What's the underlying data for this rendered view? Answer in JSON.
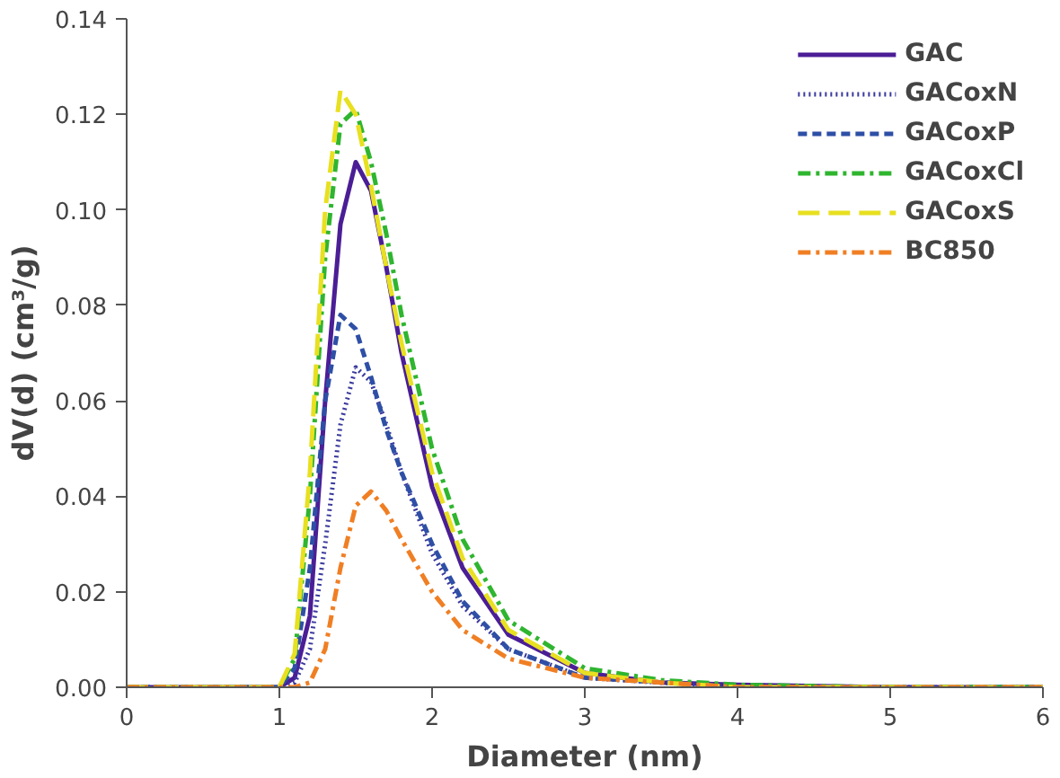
{
  "chart_data": {
    "type": "line",
    "xlabel": "Diameter (nm)",
    "ylabel": "dV(d) (cm³/g)",
    "x": [
      0,
      1.0,
      1.1,
      1.2,
      1.3,
      1.4,
      1.5,
      1.6,
      1.7,
      1.8,
      2.0,
      2.2,
      2.5,
      3.0,
      3.5,
      4,
      5,
      6
    ],
    "series": [
      {
        "name": "GAC",
        "color": "#4b1e96",
        "line_style": "solid",
        "values": [
          0,
          0,
          0.002,
          0.015,
          0.06,
          0.097,
          0.11,
          0.104,
          0.088,
          0.07,
          0.042,
          0.025,
          0.011,
          0.003,
          0.001,
          0.0005,
          0,
          0
        ]
      },
      {
        "name": "GACoxN",
        "color": "#3a3a9e",
        "line_style": "dotted",
        "values": [
          0,
          0,
          0.001,
          0.008,
          0.03,
          0.055,
          0.067,
          0.064,
          0.055,
          0.045,
          0.028,
          0.017,
          0.008,
          0.002,
          0.001,
          0,
          0,
          0
        ]
      },
      {
        "name": "GACoxP",
        "color": "#2e4fa5",
        "line_style": "dashed",
        "values": [
          0,
          0,
          0.004,
          0.025,
          0.06,
          0.078,
          0.075,
          0.065,
          0.054,
          0.045,
          0.03,
          0.018,
          0.008,
          0.002,
          0.001,
          0,
          0,
          0
        ]
      },
      {
        "name": "GACoxCl",
        "color": "#2fb52f",
        "line_style": "dashdot",
        "values": [
          0,
          0,
          0.006,
          0.04,
          0.09,
          0.118,
          0.121,
          0.11,
          0.095,
          0.078,
          0.05,
          0.031,
          0.014,
          0.004,
          0.0015,
          0.0005,
          0,
          0
        ]
      },
      {
        "name": "GACoxS",
        "color": "#e8e020",
        "line_style": "longdash",
        "values": [
          0,
          0,
          0.007,
          0.045,
          0.1,
          0.125,
          0.12,
          0.105,
          0.088,
          0.072,
          0.045,
          0.027,
          0.012,
          0.003,
          0.001,
          0,
          0,
          0
        ]
      },
      {
        "name": "BC850",
        "color": "#f07f24",
        "line_style": "dashdot",
        "values": [
          0,
          0,
          0,
          0.001,
          0.008,
          0.025,
          0.038,
          0.041,
          0.037,
          0.031,
          0.02,
          0.012,
          0.006,
          0.002,
          0.001,
          0,
          0,
          0
        ]
      }
    ],
    "xlim": [
      0,
      6
    ],
    "xticks": [
      0,
      1,
      2,
      3,
      4,
      5,
      6
    ],
    "ylim": [
      0,
      0.14
    ],
    "yticks": [
      {
        "value": 0,
        "label": "0.00"
      },
      {
        "value": 0.02,
        "label": "0.02"
      },
      {
        "value": 0.04,
        "label": "0.04"
      },
      {
        "value": 0.06,
        "label": "0.06"
      },
      {
        "value": 0.08,
        "label": "0.08"
      },
      {
        "value": 0.1,
        "label": "0.10"
      },
      {
        "value": 0.12,
        "label": "0.12"
      },
      {
        "value": 0.14,
        "label": "0.14"
      }
    ],
    "grid": false,
    "legend": "top right",
    "marker": "none"
  }
}
